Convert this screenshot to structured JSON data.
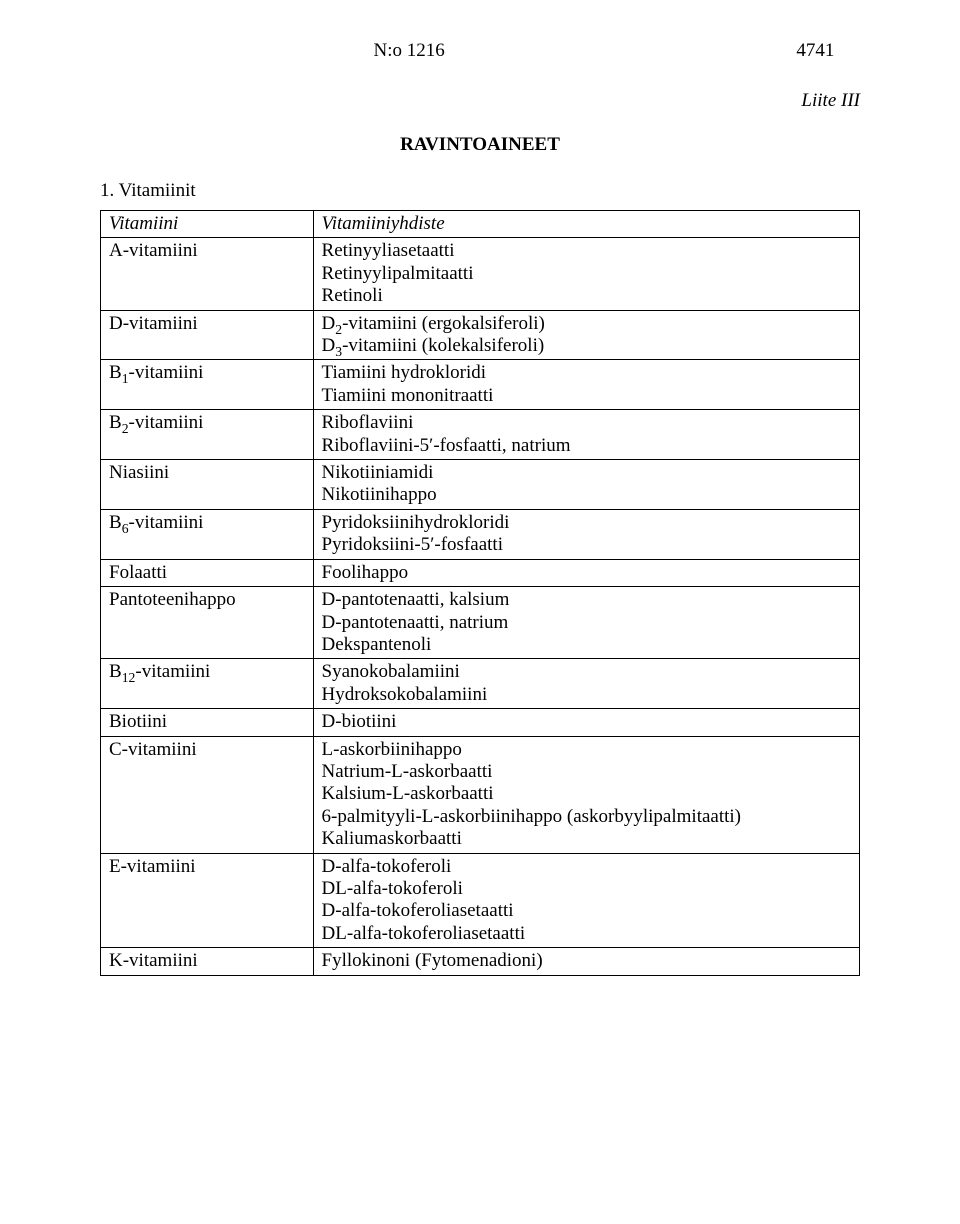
{
  "header": {
    "doc_number_label": "N:o 1216",
    "page_number": "4741"
  },
  "appendix_label": "Liite III",
  "doc_title": "RAVINTOAINEET",
  "section1_title": "1. Vitamiinit",
  "table": {
    "col1_header": "Vitamiini",
    "col2_header": "Vitamiiniyhdiste",
    "rows": [
      {
        "name": "A-vitamiini",
        "compounds": [
          "Retinyyliasetaatti",
          "Retinyylipalmitaatti",
          "Retinoli"
        ]
      },
      {
        "name": "D-vitamiini",
        "compounds": [
          "D₂-vitamiini (ergokalsiferoli)",
          "D₃-vitamiini (kolekalsiferoli)"
        ]
      },
      {
        "name": "B₁-vitamiini",
        "compounds": [
          "Tiamiini hydrokloridi",
          "Tiamiini mononitraatti"
        ]
      },
      {
        "name": "B₂-vitamiini",
        "compounds": [
          "Riboflaviini",
          "Riboflaviini-5′-fosfaatti, natrium"
        ]
      },
      {
        "name": "Niasiini",
        "compounds": [
          "Nikotiiniamidi",
          "Nikotiinihappo"
        ]
      },
      {
        "name": "B₆-vitamiini",
        "compounds": [
          "Pyridoksiinihydrokloridi",
          "Pyridoksiini-5′-fosfaatti"
        ]
      },
      {
        "name": "Folaatti",
        "compounds": [
          "Foolihappo"
        ]
      },
      {
        "name": "Pantoteenihappo",
        "compounds": [
          "D-pantotenaatti, kalsium",
          "D-pantotenaatti, natrium",
          "Dekspantenoli"
        ]
      },
      {
        "name": "B₁₂-vitamiini",
        "compounds": [
          "Syanokobalamiini",
          "Hydroksokobalamiini"
        ]
      },
      {
        "name": "Biotiini",
        "compounds": [
          "D-biotiini"
        ]
      },
      {
        "name": "C-vitamiini",
        "compounds": [
          "L-askorbiinihappo",
          "Natrium-L-askorbaatti",
          "Kalsium-L-askorbaatti",
          "6-palmityyli-L-askorbiinihappo (askorbyylipalmitaatti)",
          "Kaliumaskorbaatti"
        ]
      },
      {
        "name": "E-vitamiini",
        "compounds": [
          "D-alfa-tokoferoli",
          "DL-alfa-tokoferoli",
          "D-alfa-tokoferoliasetaatti",
          "DL-alfa-tokoferoliasetaatti"
        ]
      },
      {
        "name": "K-vitamiini",
        "compounds": [
          "Fyllokinoni (Fytomenadioni)"
        ]
      }
    ]
  },
  "colors": {
    "text": "#000000",
    "background": "#ffffff",
    "border": "#000000"
  },
  "typography": {
    "family": "Times New Roman",
    "body_size_pt": 14,
    "title_weight": "bold"
  }
}
